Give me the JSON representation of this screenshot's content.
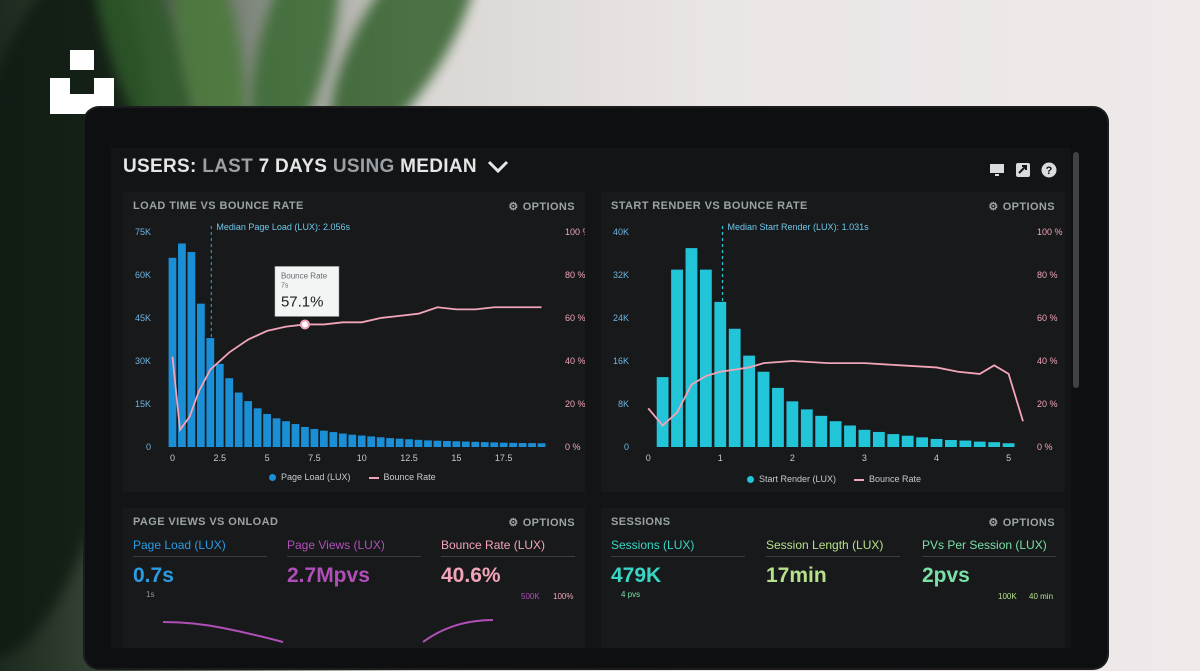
{
  "header": {
    "w1": "USERS:",
    "g1": "LAST",
    "w2": "7 DAYS",
    "g2": "USING",
    "w3": "MEDIAN"
  },
  "icons": [
    "monitor-icon",
    "share-icon",
    "help-icon",
    "chevron-down-icon",
    "gear-icon",
    "logo-icon"
  ],
  "colors": {
    "bar_blue": "#1a8fd6",
    "bar_cyan": "#22c4d8",
    "bounce_pink": "#f2a4b8",
    "page_views_purple": "#b04fb8"
  },
  "options_label": "OPTIONS",
  "panels": {
    "load_time": {
      "title": "LOAD TIME VS BOUNCE RATE",
      "median_label": "Median Page Load (LUX): 2.056s",
      "tooltip": {
        "label": "Bounce Rate",
        "sub": "7s",
        "value": "57.1%"
      },
      "legend": [
        "Page Load (LUX)",
        "Bounce Rate"
      ]
    },
    "start_render": {
      "title": "START RENDER VS BOUNCE RATE",
      "median_label": "Median Start Render (LUX): 1.031s",
      "legend": [
        "Start Render (LUX)",
        "Bounce Rate"
      ]
    },
    "page_views": {
      "title": "PAGE VIEWS VS ONLOAD",
      "metrics": [
        {
          "label": "Page Load (LUX)",
          "value": "0.7s",
          "color": "#2b9be2"
        },
        {
          "label": "Page Views (LUX)",
          "value": "2.7Mpvs",
          "color": "#b04fb8"
        },
        {
          "label": "Bounce Rate (LUX)",
          "value": "40.6%",
          "color": "#f2a4b8"
        }
      ],
      "sub_left": "1s",
      "sub_right1": "500K",
      "sub_right2": "100%"
    },
    "sessions": {
      "title": "SESSIONS",
      "metrics": [
        {
          "label": "Sessions (LUX)",
          "value": "479K",
          "color": "#38d6c4"
        },
        {
          "label": "Session Length (LUX)",
          "value": "17min",
          "color": "#b7e08a"
        },
        {
          "label": "PVs Per Session (LUX)",
          "value": "2pvs",
          "color": "#7be0a8"
        }
      ],
      "sub_left": "4 pvs",
      "sub_right1": "100K",
      "sub_right2": "40 min"
    }
  },
  "chart_data": [
    {
      "type": "bar",
      "title": "LOAD TIME VS BOUNCE RATE",
      "x_ticks": [
        "0",
        "2.5",
        "5",
        "7.5",
        "10",
        "12.5",
        "15",
        "17.5"
      ],
      "y_ticks_left": [
        "75K",
        "60K",
        "45K",
        "30K",
        "15K",
        "0"
      ],
      "y_ticks_right": [
        "100 %",
        "80 %",
        "60 %",
        "40 %",
        "20 %",
        "0 %"
      ],
      "ylim_left": [
        0,
        75000
      ],
      "ylim_right": [
        0,
        100
      ],
      "xlim": [
        -0.5,
        20
      ],
      "median_x": 2.056,
      "series": [
        {
          "name": "Page Load (LUX)",
          "type": "bar",
          "bar_width": 0.5,
          "x": [
            0,
            0.5,
            1,
            1.5,
            2,
            2.5,
            3,
            3.5,
            4,
            4.5,
            5,
            5.5,
            6,
            6.5,
            7,
            7.5,
            8,
            8.5,
            9,
            9.5,
            10,
            10.5,
            11,
            11.5,
            12,
            12.5,
            13,
            13.5,
            14,
            14.5,
            15,
            15.5,
            16,
            16.5,
            17,
            17.5,
            18,
            18.5,
            19,
            19.5
          ],
          "values": [
            66000,
            71000,
            68000,
            50000,
            38000,
            29000,
            24000,
            19000,
            16000,
            13500,
            11500,
            10000,
            9000,
            8000,
            7000,
            6300,
            5700,
            5200,
            4700,
            4300,
            4000,
            3700,
            3400,
            3100,
            2900,
            2700,
            2500,
            2300,
            2200,
            2100,
            2000,
            1900,
            1800,
            1700,
            1600,
            1500,
            1450,
            1400,
            1350,
            1300
          ]
        },
        {
          "name": "Bounce Rate",
          "type": "line",
          "x": [
            0,
            0.4,
            0.9,
            1.4,
            2,
            3,
            4,
            5,
            6,
            7,
            8,
            9,
            10,
            11,
            12,
            13,
            14,
            15,
            16,
            17,
            18,
            19.5
          ],
          "values": [
            42,
            8,
            14,
            26,
            36,
            44,
            50,
            54,
            56,
            57,
            57,
            58,
            58,
            60,
            61,
            62,
            65,
            64,
            64,
            65,
            65,
            65
          ]
        }
      ]
    },
    {
      "type": "bar",
      "title": "START RENDER VS BOUNCE RATE",
      "x_ticks": [
        "0",
        "1",
        "2",
        "3",
        "4",
        "5"
      ],
      "y_ticks_left": [
        "40K",
        "32K",
        "24K",
        "16K",
        "8K",
        "0"
      ],
      "y_ticks_right": [
        "100 %",
        "80 %",
        "60 %",
        "40 %",
        "20 %",
        "0 %"
      ],
      "ylim_left": [
        0,
        40000
      ],
      "ylim_right": [
        0,
        100
      ],
      "xlim": [
        -0.1,
        5.2
      ],
      "median_x": 1.031,
      "series": [
        {
          "name": "Start Render (LUX)",
          "type": "bar",
          "bar_width": 0.2,
          "x": [
            0.2,
            0.4,
            0.6,
            0.8,
            1,
            1.2,
            1.4,
            1.6,
            1.8,
            2,
            2.2,
            2.4,
            2.6,
            2.8,
            3,
            3.2,
            3.4,
            3.6,
            3.8,
            4,
            4.2,
            4.4,
            4.6,
            4.8,
            5
          ],
          "values": [
            13000,
            33000,
            37000,
            33000,
            27000,
            22000,
            17000,
            14000,
            11000,
            8500,
            7000,
            5800,
            4800,
            4000,
            3200,
            2800,
            2400,
            2100,
            1800,
            1500,
            1300,
            1200,
            1000,
            900,
            700
          ]
        },
        {
          "name": "Bounce Rate",
          "type": "line",
          "x": [
            0,
            0.2,
            0.4,
            0.6,
            0.8,
            1,
            1.2,
            1.4,
            1.6,
            2,
            2.5,
            3,
            3.5,
            4,
            4.3,
            4.6,
            4.8,
            5,
            5.2
          ],
          "values": [
            18,
            10,
            16,
            29,
            33,
            35,
            36,
            37,
            39,
            40,
            39,
            39,
            38,
            37,
            35,
            34,
            38,
            34,
            12
          ]
        }
      ]
    }
  ]
}
